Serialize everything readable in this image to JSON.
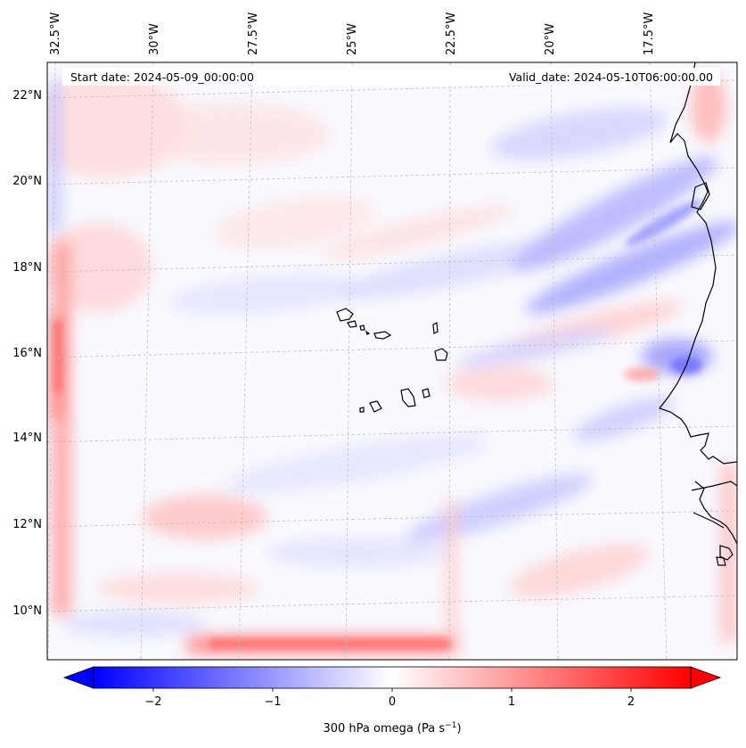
{
  "header": {
    "start_date": "Start date: 2024-05-09_00:00:00",
    "valid_date": "Valid_date: 2024-05-10T06:00:00.00"
  },
  "axes": {
    "lon_labels": [
      "32.5°W",
      "30°W",
      "27.5°W",
      "25°W",
      "22.5°W",
      "20°W",
      "17.5°W"
    ],
    "lat_labels": [
      "22°N",
      "20°N",
      "18°N",
      "16°N",
      "14°N",
      "12°N",
      "10°N"
    ]
  },
  "colorbar": {
    "label_text": "300 hPa omega (Pa s",
    "label_sup": "−1",
    "label_close": ")",
    "ticks": [
      "−2",
      "−1",
      "0",
      "1",
      "2"
    ],
    "tick_values": [
      -2,
      -1,
      0,
      1,
      2
    ],
    "range": [
      -2.5,
      2.5
    ],
    "colormap": "bwr",
    "color_negative": "#0000ff",
    "color_zero": "#ffffff",
    "color_positive": "#ff0000"
  },
  "map": {
    "field": "300 hPa omega",
    "projection": "lambert-conformal",
    "gridlines": "dashed-grey",
    "coastline_color": "#000000"
  }
}
